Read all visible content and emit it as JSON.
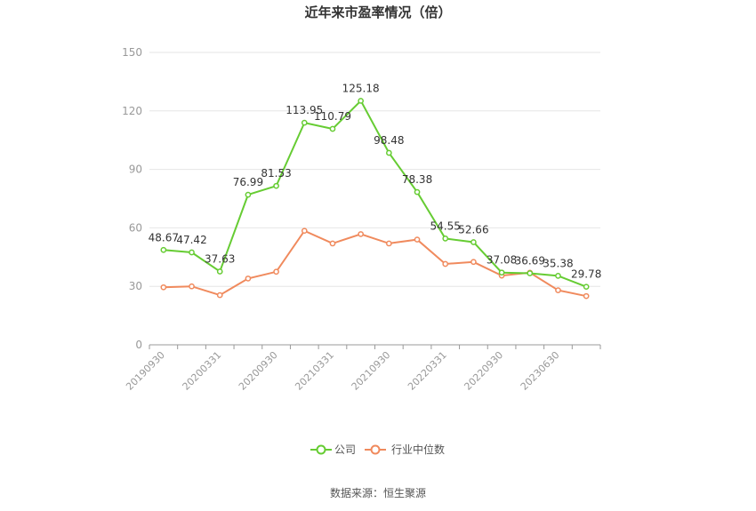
{
  "chart_data": {
    "type": "line",
    "title": "近年来市盈率情况（倍）",
    "source": "数据来源：恒生聚源",
    "ylim": [
      0,
      150
    ],
    "yticks": [
      0,
      30,
      60,
      90,
      120,
      150
    ],
    "grid": true,
    "legend_position": "bottom-center",
    "x_tick_labels": [
      "20190930",
      "20200331",
      "20200930",
      "20210331",
      "20210930",
      "20220331",
      "20220930",
      "20230630"
    ],
    "series": [
      {
        "name": "公司",
        "color": "#66cc33",
        "values": [
          48.67,
          47.42,
          37.63,
          76.99,
          81.53,
          113.95,
          110.79,
          125.18,
          98.48,
          78.38,
          54.55,
          52.66,
          37.08,
          36.69,
          35.38,
          29.78
        ],
        "labels": [
          "48.67",
          "47.42",
          "37.63",
          "76.99",
          "81.53",
          "113.95",
          "110.79",
          "125.18",
          "98.48",
          "78.38",
          "54.55",
          "52.66",
          "37.08",
          "36.69",
          "35.38",
          "29.78"
        ]
      },
      {
        "name": "行业中位数",
        "color": "#f08a5d",
        "values": [
          29.5,
          30.0,
          25.5,
          34.0,
          37.5,
          58.5,
          52.0,
          56.8,
          52.0,
          54.0,
          41.5,
          42.5,
          35.5,
          37.0,
          28.0,
          25.0
        ]
      }
    ]
  }
}
